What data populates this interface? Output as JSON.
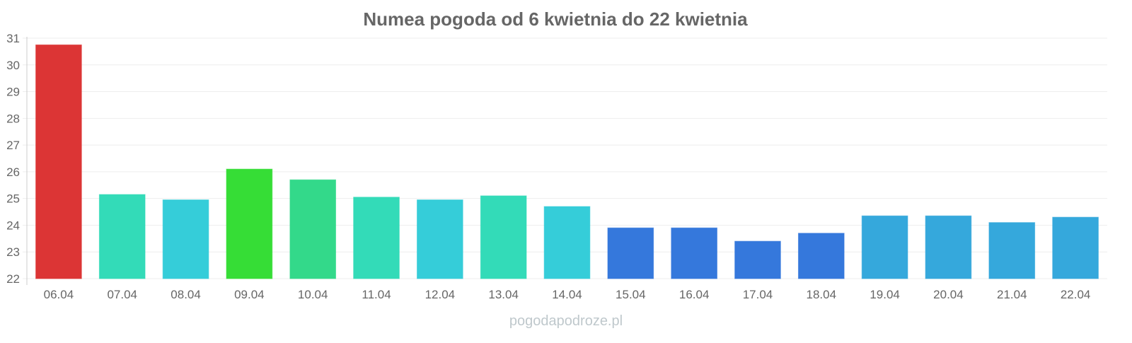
{
  "chart_data": {
    "type": "bar",
    "title": "Numea pogoda od 6 kwietnia do 22 kwietnia",
    "xlabel": "",
    "ylabel": "",
    "ylim": [
      22,
      31
    ],
    "yticks": [
      22,
      23,
      24,
      25,
      26,
      27,
      28,
      29,
      30,
      31
    ],
    "grid": true,
    "categories": [
      "06.04",
      "07.04",
      "08.04",
      "09.04",
      "10.04",
      "11.04",
      "12.04",
      "13.04",
      "14.04",
      "15.04",
      "16.04",
      "17.04",
      "18.04",
      "19.04",
      "20.04",
      "21.04",
      "22.04"
    ],
    "values": [
      30.75,
      25.15,
      24.95,
      26.1,
      25.7,
      25.05,
      24.95,
      25.1,
      24.7,
      23.9,
      23.9,
      23.4,
      23.7,
      24.35,
      24.35,
      24.1,
      24.3
    ],
    "colors": [
      "#dc3535",
      "#33dbb8",
      "#35cdd9",
      "#36dd36",
      "#33d98a",
      "#33dbb8",
      "#35cdd9",
      "#33dbb8",
      "#35cdd9",
      "#3578dc",
      "#3578dc",
      "#3578dc",
      "#3578dc",
      "#35a8dc",
      "#35a8dc",
      "#35a8dc",
      "#35a8dc"
    ]
  },
  "watermark": "pogodapodroze.pl"
}
